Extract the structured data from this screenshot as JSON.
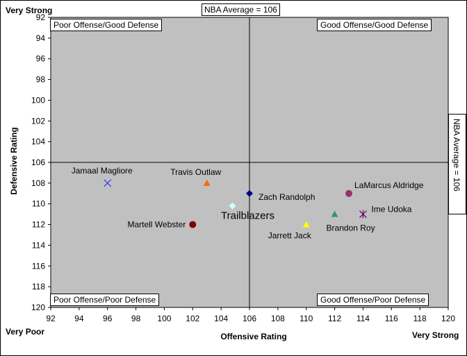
{
  "corners": {
    "top_left": "Very Strong",
    "bottom_left": "Very Poor",
    "bottom_right": "Very Strong"
  },
  "quadrants": {
    "top_left": "Poor Offense/Good Defense",
    "top_right": "Good Offense/Good Defense",
    "bottom_left": "Poor Offense/Poor Defense",
    "bottom_right": "Good Offense/Poor Defense"
  },
  "average_label": "NBA Average = 106",
  "chart_data": {
    "type": "scatter",
    "title": "",
    "xlabel": "Offensive Rating",
    "ylabel": "Defensive Rating",
    "xlim": [
      92,
      120
    ],
    "ylim": [
      92,
      120
    ],
    "y_reversed": true,
    "x_ticks": [
      92,
      94,
      96,
      98,
      100,
      102,
      104,
      106,
      108,
      110,
      112,
      114,
      116,
      118,
      120
    ],
    "y_ticks": [
      92,
      94,
      96,
      98,
      100,
      102,
      104,
      106,
      108,
      110,
      112,
      114,
      116,
      118,
      120
    ],
    "reference_lines": {
      "x": 106,
      "y": 106
    },
    "plot_background": "#c0c0c0",
    "grid": false,
    "points": [
      {
        "name": "Jamaal Magliore",
        "x": 96,
        "y": 108,
        "marker": "x",
        "color": "#3333ff"
      },
      {
        "name": "Travis Outlaw",
        "x": 103,
        "y": 108,
        "marker": "triangle",
        "color": "#ff6600"
      },
      {
        "name": "Zach Randolph",
        "x": 106,
        "y": 109,
        "marker": "diamond",
        "color": "#000080"
      },
      {
        "name": "Trailblazers",
        "x": 104.8,
        "y": 110.2,
        "marker": "diamond",
        "color": "#ccffff"
      },
      {
        "name": "Martell Webster",
        "x": 102,
        "y": 112,
        "marker": "circle",
        "color": "#800000"
      },
      {
        "name": "Jarrett Jack",
        "x": 110,
        "y": 112,
        "marker": "triangle",
        "color": "#ffff00"
      },
      {
        "name": "Brandon Roy",
        "x": 112,
        "y": 111,
        "marker": "triangle",
        "color": "#339966"
      },
      {
        "name": "LaMarcus Aldridge",
        "x": 113,
        "y": 109,
        "marker": "circle",
        "color": "#993366"
      },
      {
        "name": "Ime Udoka",
        "x": 114,
        "y": 111,
        "marker": "asterisk",
        "color": "#660066"
      }
    ]
  }
}
